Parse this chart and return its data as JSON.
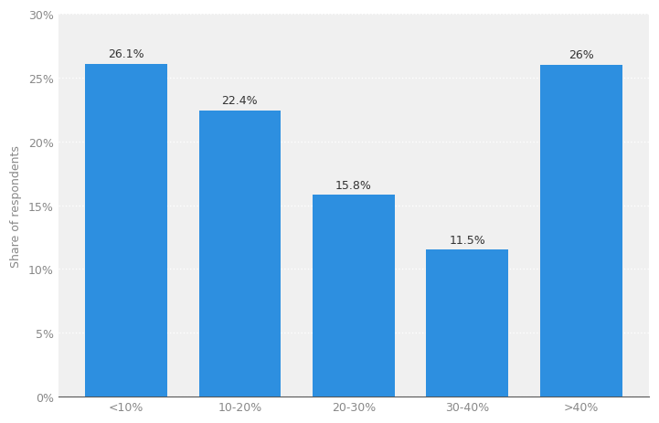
{
  "categories": [
    "<10%",
    "10-20%",
    "20-30%",
    "30-40%",
    ">40%"
  ],
  "values": [
    26.1,
    22.4,
    15.8,
    11.5,
    26.0
  ],
  "labels": [
    "26.1%",
    "22.4%",
    "15.8%",
    "11.5%",
    "26%"
  ],
  "bar_color": "#2d8fe0",
  "ylabel": "Share of respondents",
  "ylim": [
    0,
    30
  ],
  "yticks": [
    0,
    5,
    10,
    15,
    20,
    25,
    30
  ],
  "ytick_labels": [
    "0%",
    "5%",
    "10%",
    "15%",
    "20%",
    "25%",
    "30%"
  ],
  "background_color": "#ffffff",
  "plot_bg_color": "#f0f0f0",
  "bar_bg_color": "#e8e8e8",
  "grid_color": "#ffffff",
  "label_fontsize": 9,
  "tick_fontsize": 9,
  "ylabel_fontsize": 9
}
